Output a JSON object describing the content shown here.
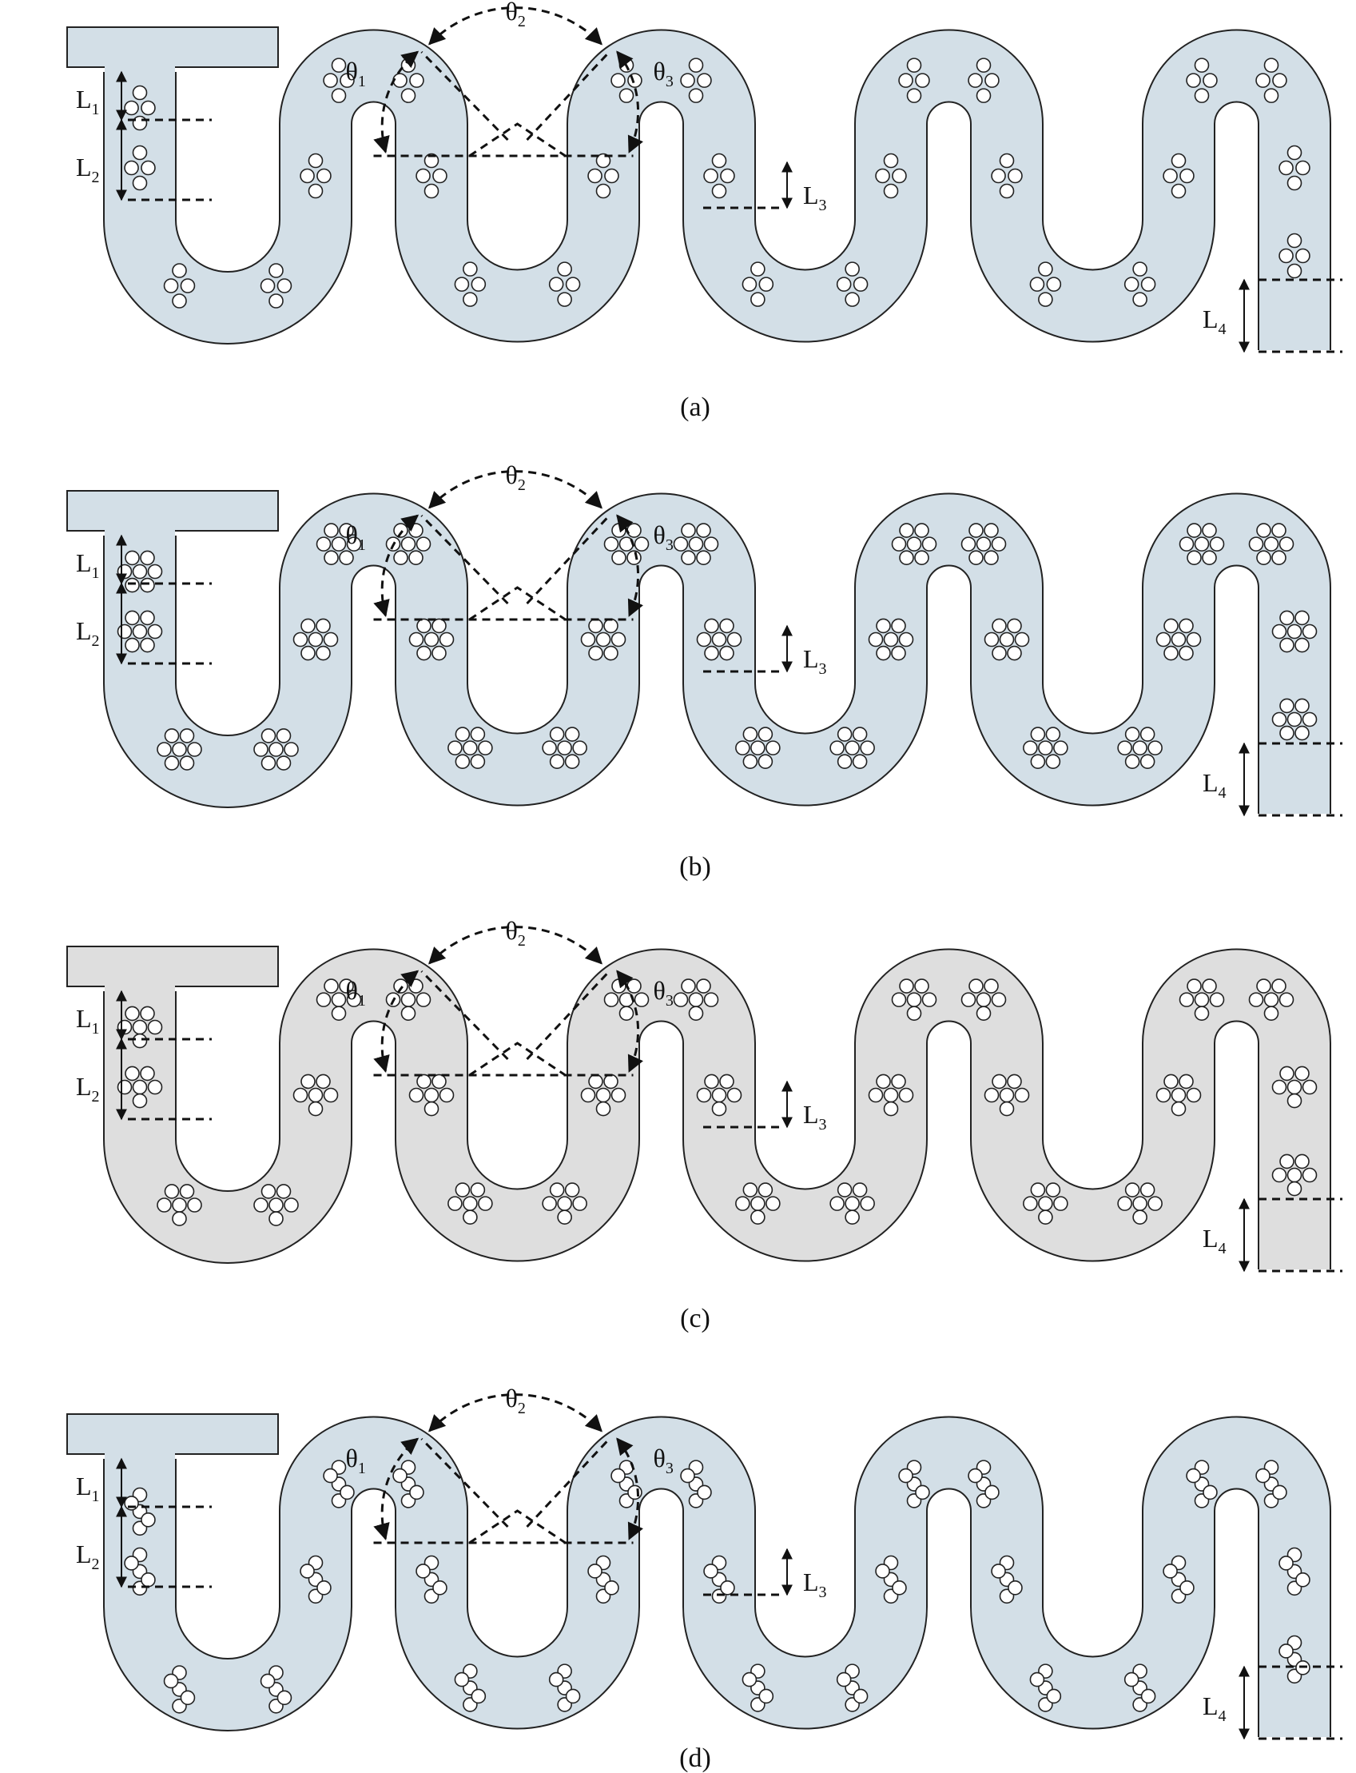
{
  "colors": {
    "channel_blue": "#d3dfe7",
    "channel_gray": "#dedede",
    "outline": "#222222",
    "pillar_fill": "#ffffff"
  },
  "panels": [
    {
      "caption": "(a)",
      "fill": "#d3dfe7",
      "L1": "L",
      "L1_sub": "1",
      "L2": "L",
      "L2_sub": "2",
      "L3": "L",
      "L3_sub": "3",
      "L4": "L",
      "L4_sub": "4",
      "t1": "θ",
      "t1_sub": "1",
      "t2": "θ",
      "t2_sub": "2",
      "t3": "θ",
      "t3_sub": "3"
    },
    {
      "caption": "(b)",
      "fill": "#d3dfe7",
      "L1": "L",
      "L1_sub": "1",
      "L2": "L",
      "L2_sub": "2",
      "L3": "L",
      "L3_sub": "3",
      "L4": "L",
      "L4_sub": "4",
      "t1": "θ",
      "t1_sub": "1",
      "t2": "θ",
      "t2_sub": "2",
      "t3": "θ",
      "t3_sub": "3"
    },
    {
      "caption": "(c)",
      "fill": "#dedede",
      "L1": "L",
      "L1_sub": "1",
      "L2": "L",
      "L2_sub": "2",
      "L3": "L",
      "L3_sub": "3",
      "L4": "L",
      "L4_sub": "4",
      "t1": "θ",
      "t1_sub": "1",
      "t2": "θ",
      "t2_sub": "2",
      "t3": "θ",
      "t3_sub": "3"
    },
    {
      "caption": "(d)",
      "fill": "#d3dfe7",
      "L1": "L",
      "L1_sub": "1",
      "L2": "L",
      "L2_sub": "2",
      "L3": "L",
      "L3_sub": "3",
      "L4": "L",
      "L4_sub": "4",
      "t1": "θ",
      "t1_sub": "1",
      "t2": "θ",
      "t2_sub": "2",
      "t3": "θ",
      "t3_sub": "3"
    }
  ]
}
